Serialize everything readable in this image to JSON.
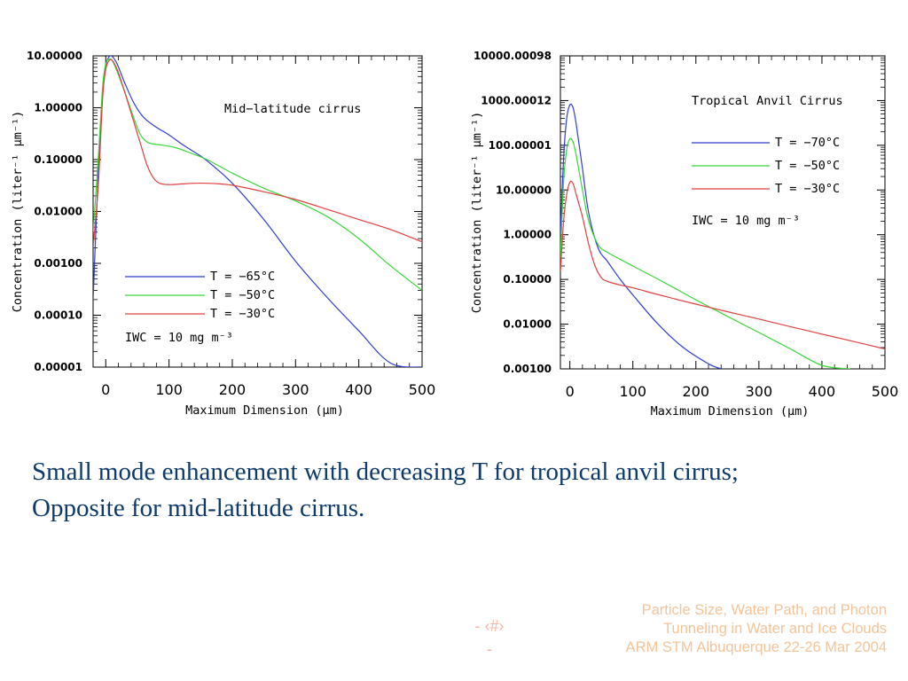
{
  "chart_data": [
    {
      "type": "line",
      "title": "Mid−latitude cirrus",
      "xlabel": "Maximum Dimension (μm)",
      "ylabel": "Concentration (liter⁻¹ μm⁻¹)",
      "y_scale": "log",
      "xlim": [
        -20,
        500
      ],
      "ylim": [
        1e-05,
        10
      ],
      "x_ticks": [
        "0",
        "100",
        "200",
        "300",
        "400",
        "500"
      ],
      "y_ticks": [
        "10.00000",
        "1.00000",
        "0.10000",
        "0.01000",
        "0.00100",
        "0.00010",
        "0.00001"
      ],
      "legend_position": "bottom-left",
      "annotation": "IWC = 10 mg m⁻³",
      "series": [
        {
          "name": "T = −65°C",
          "color": "#2f3fcf",
          "x": [
            -20,
            -12,
            -5,
            0,
            5,
            10,
            18,
            30,
            45,
            60,
            80,
            100,
            120,
            140,
            160,
            200,
            250,
            300,
            350,
            400,
            450,
            500
          ],
          "y": [
            0.0002,
            0.05,
            2.0,
            6.5,
            9.5,
            9.8,
            7.0,
            3.0,
            1.2,
            0.65,
            0.42,
            0.3,
            0.2,
            0.14,
            0.095,
            0.035,
            0.007,
            0.0011,
            0.00022,
            5e-05,
            1.2e-05,
            9.5e-06
          ]
        },
        {
          "name": "T = −50°C",
          "color": "#3ad63a",
          "x": [
            -20,
            -12,
            -5,
            0,
            5,
            10,
            18,
            30,
            45,
            55,
            65,
            75,
            90,
            110,
            130,
            160,
            200,
            250,
            300,
            350,
            400,
            450,
            500
          ],
          "y": [
            0.004,
            0.1,
            2.5,
            7.0,
            8.5,
            8.2,
            5.0,
            2.0,
            0.6,
            0.3,
            0.22,
            0.2,
            0.19,
            0.17,
            0.14,
            0.1,
            0.055,
            0.028,
            0.016,
            0.008,
            0.003,
            0.0009,
            0.0003
          ]
        },
        {
          "name": "T = −30°C",
          "color": "#e04040",
          "x": [
            -20,
            -12,
            -5,
            0,
            5,
            10,
            18,
            30,
            45,
            55,
            65,
            75,
            85,
            100,
            120,
            140,
            160,
            180,
            200,
            250,
            300,
            350,
            400,
            450,
            500
          ],
          "y": [
            0.002,
            0.03,
            1.5,
            5.5,
            8.0,
            8.2,
            5.5,
            2.0,
            0.5,
            0.2,
            0.08,
            0.045,
            0.035,
            0.033,
            0.034,
            0.035,
            0.035,
            0.034,
            0.032,
            0.024,
            0.017,
            0.011,
            0.007,
            0.0045,
            0.0026
          ]
        }
      ]
    },
    {
      "type": "line",
      "title": "Tropical Anvil Cirrus",
      "xlabel": "Maximum Dimension (μm)",
      "ylabel": "Concentration (liter⁻¹ μm⁻¹)",
      "y_scale": "log",
      "xlim": [
        -15,
        500
      ],
      "ylim": [
        0.001,
        10000
      ],
      "x_ticks": [
        "0",
        "100",
        "200",
        "300",
        "400",
        "500"
      ],
      "y_ticks": [
        "10000.00098",
        "1000.00012",
        "100.00001",
        "10.00000",
        "1.00000",
        "0.10000",
        "0.01000",
        "0.00100"
      ],
      "legend_position": "top-right",
      "annotation": "IWC = 10 mg m⁻³",
      "series": [
        {
          "name": "T = −70°C",
          "color": "#2f3fcf",
          "x": [
            -15,
            -10,
            -5,
            0,
            5,
            10,
            20,
            30,
            45,
            60,
            80,
            100,
            140,
            180,
            220,
            240
          ],
          "y": [
            1.0,
            50,
            400,
            800,
            700,
            300,
            30,
            3.0,
            0.5,
            0.25,
            0.1,
            0.045,
            0.01,
            0.003,
            0.0013,
            0.001
          ]
        },
        {
          "name": "T = −50°C",
          "color": "#3ad63a",
          "x": [
            -15,
            -10,
            -5,
            0,
            5,
            10,
            20,
            30,
            45,
            60,
            100,
            150,
            200,
            250,
            300,
            350,
            400,
            445
          ],
          "y": [
            0.3,
            15,
            80,
            140,
            120,
            60,
            10,
            2.0,
            0.6,
            0.4,
            0.2,
            0.085,
            0.035,
            0.015,
            0.0065,
            0.0028,
            0.0012,
            0.001
          ]
        },
        {
          "name": "T = −30°C",
          "color": "#e04040",
          "x": [
            -15,
            -10,
            -5,
            0,
            5,
            10,
            20,
            30,
            40,
            50,
            60,
            80,
            100,
            150,
            200,
            250,
            300,
            350,
            400,
            450,
            500
          ],
          "y": [
            0.15,
            2.0,
            8.0,
            15,
            14,
            8.0,
            2.5,
            0.6,
            0.2,
            0.11,
            0.09,
            0.075,
            0.065,
            0.042,
            0.028,
            0.019,
            0.013,
            0.0088,
            0.006,
            0.0041,
            0.0028
          ]
        }
      ]
    }
  ],
  "caption": {
    "line1": "Small mode enhancement with decreasing T for tropical anvil cirrus;",
    "line2": "Opposite for mid-latitude cirrus."
  },
  "footer": {
    "page_number_line1": "- ‹#›",
    "page_number_line2": "-",
    "meta_line1": "Particle Size, Water Path, and Photon",
    "meta_line2": "Tunneling in Water and Ice Clouds",
    "meta_line3": "ARM STM Albuquerque 22-26 Mar 2004"
  }
}
